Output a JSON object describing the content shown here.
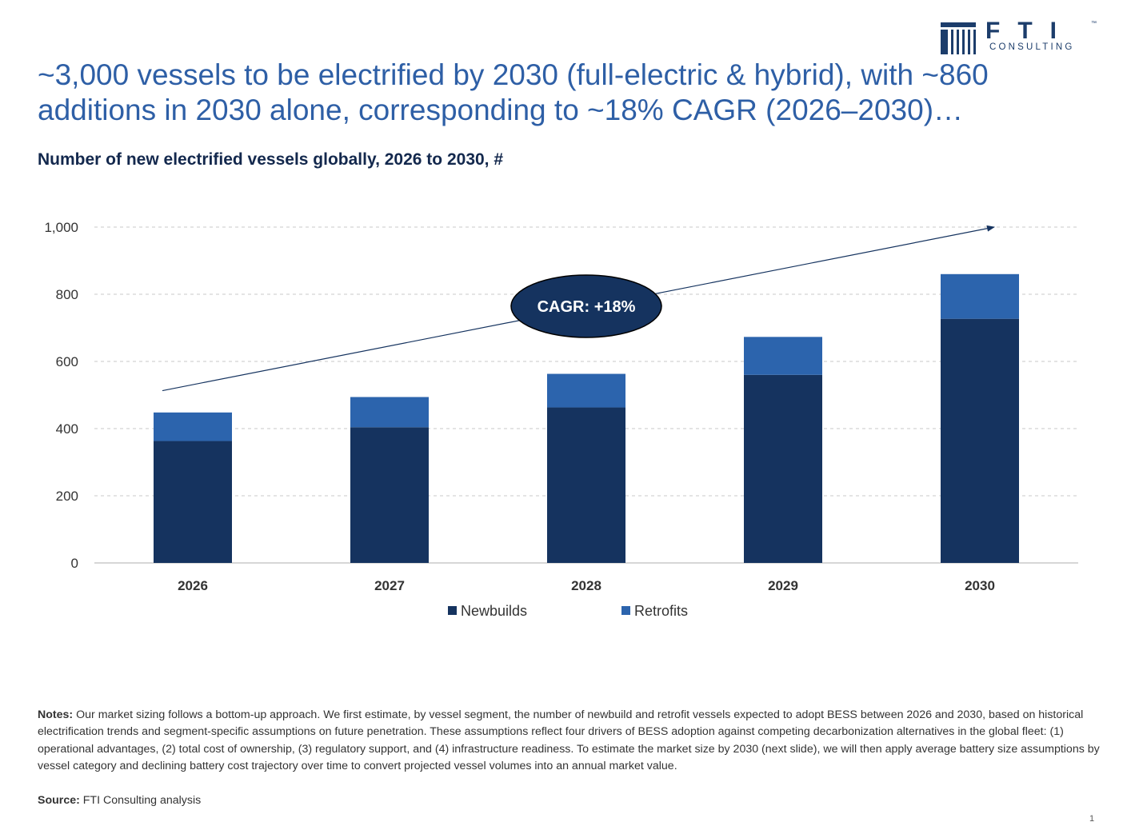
{
  "header": {
    "logo_letters": "FTI",
    "logo_tm": "™",
    "logo_sub": "CONSULTING",
    "title": "~3,000 vessels to be electrified by 2030 (full-electric & hybrid), with ~860 additions in 2030 alone, corresponding to ~18% CAGR (2026–2030)…"
  },
  "chart_data": {
    "type": "bar",
    "stacked": true,
    "title": "Number of new electrified vessels globally, 2026 to 2030, #",
    "categories": [
      "2026",
      "2027",
      "2028",
      "2029",
      "2030"
    ],
    "series": [
      {
        "name": "Newbuilds",
        "values": [
          363,
          404,
          463,
          560,
          727
        ],
        "color": "#15335f"
      },
      {
        "name": "Retrofits",
        "values": [
          85,
          90,
          100,
          113,
          133
        ],
        "color": "#2c64ad"
      }
    ],
    "ylim": [
      0,
      1000
    ],
    "yticks": [
      0,
      200,
      400,
      600,
      800,
      1000
    ],
    "ytick_labels": [
      "0",
      "200",
      "400",
      "600",
      "800",
      "1,000"
    ],
    "grid": true,
    "legend": "bottom",
    "annotation": {
      "label": "CAGR: +18%",
      "arrow_from": [
        "2026",
        513
      ],
      "arrow_to": [
        "2030",
        1000
      ]
    }
  },
  "footer": {
    "notes_label": "Notes:",
    "notes_text": " Our market sizing follows a bottom-up approach. We first estimate, by vessel segment, the number of newbuild and retrofit vessels expected to adopt BESS between 2026 and 2030, based on historical electrification trends and segment-specific assumptions on future penetration. These assumptions reflect four drivers of BESS adoption against competing decarbonization alternatives in the global fleet: (1) operational advantages, (2) total cost of ownership, (3) regulatory support, and (4) infrastructure readiness. To estimate the market size by 2030 (next slide), we will then apply average battery size assumptions by vessel category and declining battery cost trajectory over time to convert projected vessel volumes into an annual market value.",
    "source_label": "Source:",
    "source_text": " FTI Consulting analysis",
    "page_number": "1"
  }
}
